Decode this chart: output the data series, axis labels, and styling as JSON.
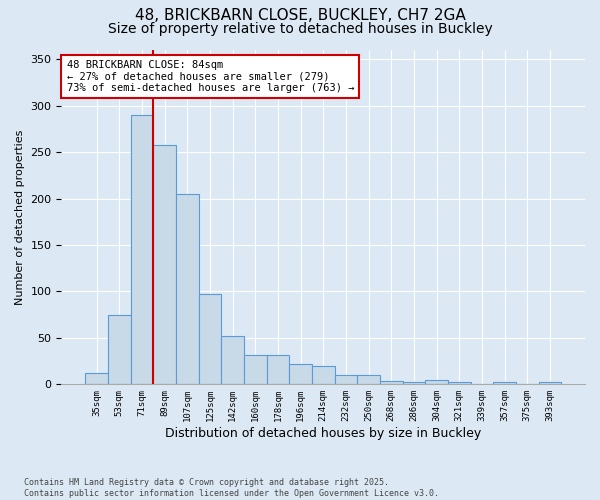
{
  "title1": "48, BRICKBARN CLOSE, BUCKLEY, CH7 2GA",
  "title2": "Size of property relative to detached houses in Buckley",
  "xlabel": "Distribution of detached houses by size in Buckley",
  "ylabel": "Number of detached properties",
  "categories": [
    "35sqm",
    "53sqm",
    "71sqm",
    "89sqm",
    "107sqm",
    "125sqm",
    "142sqm",
    "160sqm",
    "178sqm",
    "196sqm",
    "214sqm",
    "232sqm",
    "250sqm",
    "268sqm",
    "286sqm",
    "304sqm",
    "321sqm",
    "339sqm",
    "357sqm",
    "375sqm",
    "393sqm"
  ],
  "values": [
    12,
    75,
    290,
    258,
    205,
    97,
    52,
    32,
    32,
    22,
    20,
    10,
    10,
    4,
    3,
    5,
    3,
    0,
    3,
    0,
    2
  ],
  "bar_color": "#c8d9e8",
  "bar_edge_color": "#5b9bd5",
  "red_line_x": 2.5,
  "annotation_text": "48 BRICKBARN CLOSE: 84sqm\n← 27% of detached houses are smaller (279)\n73% of semi-detached houses are larger (763) →",
  "annotation_box_color": "#ffffff",
  "annotation_border_color": "#cc0000",
  "ylim": [
    0,
    360
  ],
  "yticks": [
    0,
    50,
    100,
    150,
    200,
    250,
    300,
    350
  ],
  "footnote": "Contains HM Land Registry data © Crown copyright and database right 2025.\nContains public sector information licensed under the Open Government Licence v3.0.",
  "background_color": "#dce9f5",
  "title_fontsize": 11,
  "subtitle_fontsize": 10
}
